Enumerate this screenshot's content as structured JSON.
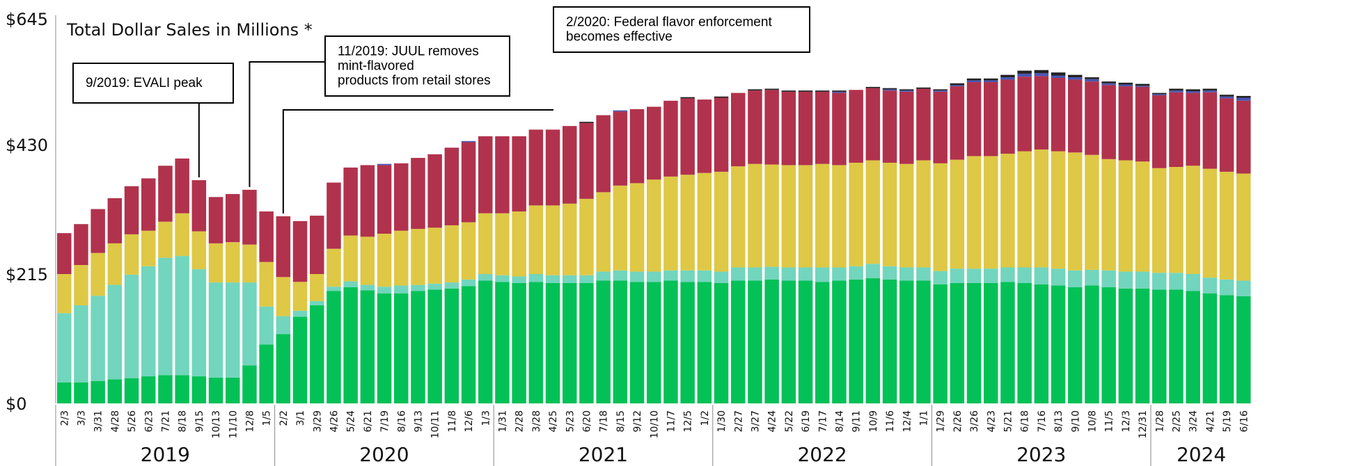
{
  "chart_data": {
    "type": "bar",
    "stacked": true,
    "title": "Total Dollar Sales in Millions *",
    "xlabel": "",
    "ylabel": "",
    "ylim": [
      0,
      645
    ],
    "y_ticks": [
      {
        "value": 0,
        "label": "$0"
      },
      {
        "value": 215,
        "label": "$215"
      },
      {
        "value": 430,
        "label": "$430"
      },
      {
        "value": 645,
        "label": "$645"
      }
    ],
    "grid": false,
    "legend": "none",
    "colors": {
      "green": "#03c157",
      "teal": "#72d5bd",
      "yellow": "#dec845",
      "red": "#b1324c",
      "blue": "#4a55b0",
      "black": "#222222"
    },
    "categories": [
      "2/3",
      "3/3",
      "3/31",
      "4/28",
      "5/26",
      "6/23",
      "7/21",
      "8/18",
      "9/15",
      "10/13",
      "11/10",
      "12/8",
      "1/5",
      "2/2",
      "3/1",
      "3/29",
      "4/26",
      "5/24",
      "6/21",
      "7/19",
      "8/16",
      "9/13",
      "10/11",
      "11/8",
      "12/6",
      "1/3",
      "1/31",
      "2/28",
      "3/28",
      "4/25",
      "5/23",
      "6/20",
      "7/18",
      "8/15",
      "9/12",
      "10/10",
      "11/7",
      "12/5",
      "1/2",
      "1/30",
      "2/27",
      "3/27",
      "4/24",
      "5/22",
      "6/19",
      "7/17",
      "8/14",
      "9/11",
      "10/9",
      "11/6",
      "12/4",
      "1/1",
      "1/29",
      "2/26",
      "3/26",
      "4/23",
      "5/21",
      "6/18",
      "7/16",
      "8/13",
      "9/10",
      "10/8",
      "11/5",
      "12/3",
      "12/31",
      "1/28",
      "2/25",
      "3/24",
      "4/21",
      "5/19",
      "6/16"
    ],
    "years": [
      {
        "label": "2019",
        "start": 0,
        "count": 13
      },
      {
        "label": "2020",
        "start": 13,
        "count": 13
      },
      {
        "label": "2021",
        "start": 26,
        "count": 13
      },
      {
        "label": "2022",
        "start": 39,
        "count": 13
      },
      {
        "label": "2023",
        "start": 52,
        "count": 13
      },
      {
        "label": "2024",
        "start": 65,
        "count": 6
      }
    ],
    "series": [
      {
        "key": "green",
        "values": [
          35,
          35,
          37,
          40,
          42,
          45,
          47,
          47,
          45,
          43,
          43,
          63,
          98,
          115,
          144,
          163,
          187,
          193,
          188,
          183,
          183,
          187,
          189,
          191,
          195,
          204,
          202,
          200,
          202,
          200,
          200,
          200,
          204,
          204,
          202,
          202,
          204,
          202,
          202,
          200,
          204,
          204,
          206,
          204,
          204,
          202,
          204,
          206,
          208,
          206,
          204,
          204,
          198,
          200,
          200,
          200,
          202,
          200,
          198,
          196,
          193,
          196,
          193,
          191,
          191,
          189,
          189,
          187,
          183,
          180,
          178
        ]
      },
      {
        "key": "teal",
        "values": [
          115,
          128,
          142,
          157,
          172,
          183,
          195,
          198,
          178,
          158,
          158,
          138,
          63,
          30,
          10,
          7,
          7,
          10,
          9,
          11,
          13,
          10,
          10,
          10,
          11,
          11,
          11,
          11,
          13,
          13,
          13,
          13,
          15,
          17,
          17,
          17,
          17,
          19,
          19,
          19,
          22,
          22,
          21,
          22,
          22,
          24,
          22,
          22,
          24,
          22,
          22,
          22,
          22,
          24,
          24,
          24,
          24,
          26,
          28,
          28,
          28,
          26,
          28,
          28,
          28,
          28,
          28,
          28,
          26,
          26,
          26
        ]
      },
      {
        "key": "yellow",
        "values": [
          65,
          67,
          71,
          69,
          67,
          59,
          60,
          71,
          63,
          65,
          67,
          63,
          74,
          65,
          48,
          45,
          63,
          76,
          80,
          88,
          91,
          93,
          93,
          95,
          95,
          101,
          103,
          108,
          114,
          116,
          119,
          127,
          132,
          141,
          147,
          153,
          156,
          159,
          162,
          166,
          168,
          172,
          170,
          170,
          170,
          172,
          170,
          172,
          172,
          172,
          172,
          178,
          179,
          181,
          187,
          187,
          189,
          193,
          196,
          195,
          196,
          191,
          185,
          185,
          183,
          174,
          176,
          180,
          181,
          179,
          178
        ]
      },
      {
        "key": "red",
        "values": [
          68,
          68,
          73,
          75,
          80,
          87,
          93,
          91,
          85,
          77,
          80,
          91,
          84,
          101,
          101,
          97,
          110,
          113,
          119,
          114,
          112,
          118,
          122,
          129,
          133,
          128,
          128,
          125,
          126,
          126,
          129,
          126,
          128,
          123,
          123,
          121,
          126,
          127,
          122,
          123,
          122,
          122,
          124,
          122,
          122,
          120,
          120,
          121,
          120,
          120,
          120,
          119,
          119,
          122,
          123,
          123,
          123,
          124,
          122,
          122,
          121,
          122,
          123,
          123,
          124,
          121,
          124,
          121,
          127,
          122,
          121
        ]
      },
      {
        "key": "blue",
        "values": [
          0,
          0,
          0,
          0,
          0,
          0,
          0,
          0,
          0,
          0,
          0,
          0,
          0,
          0,
          0,
          0,
          0,
          0,
          0,
          2,
          0,
          0,
          0,
          0,
          2,
          0,
          0,
          0,
          0,
          0,
          0,
          0,
          0,
          2,
          0,
          0,
          0,
          0,
          0,
          0,
          0,
          0,
          0,
          0,
          0,
          0,
          2,
          0,
          0,
          2,
          2,
          0,
          2,
          2,
          3,
          3,
          4,
          5,
          5,
          4,
          4,
          4,
          3,
          3,
          2,
          2,
          3,
          3,
          3,
          3,
          5
        ]
      },
      {
        "key": "black",
        "values": [
          0,
          0,
          0,
          0,
          0,
          0,
          0,
          0,
          0,
          0,
          0,
          0,
          0,
          0,
          0,
          0,
          0,
          0,
          0,
          0,
          0,
          0,
          0,
          0,
          0,
          0,
          0,
          0,
          0,
          0,
          0,
          2,
          0,
          0,
          0,
          0,
          0,
          2,
          0,
          2,
          0,
          2,
          2,
          2,
          2,
          2,
          2,
          0,
          2,
          2,
          2,
          2,
          2,
          3,
          3,
          3,
          4,
          5,
          5,
          5,
          4,
          3,
          3,
          3,
          3,
          2,
          3,
          3,
          3,
          3,
          3
        ]
      }
    ],
    "annotations": [
      {
        "lines": [
          "9/2019: EVALI peak"
        ],
        "category_index": 8
      },
      {
        "lines": [
          "11/2019: JUUL removes",
          "mint-flavored",
          "products from retail stores"
        ],
        "category_index": 11
      },
      {
        "lines": [
          "2/2020: Federal flavor enforcement",
          "becomes effective"
        ],
        "category_index": 13
      }
    ]
  }
}
